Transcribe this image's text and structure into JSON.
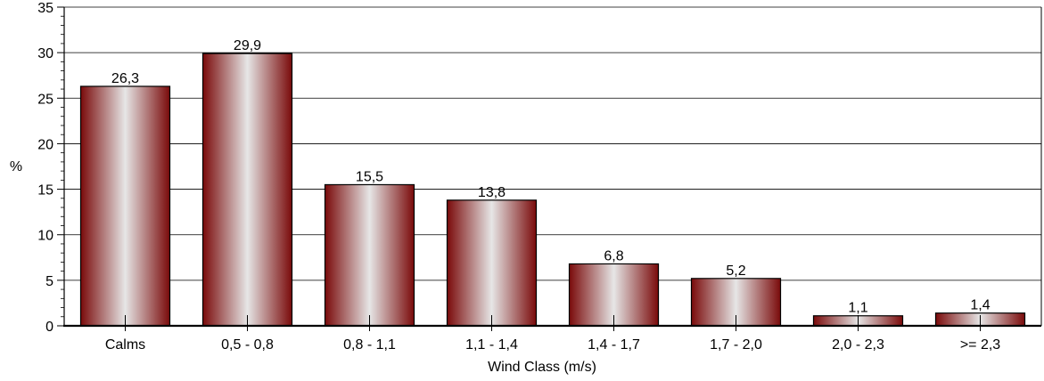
{
  "chart_data": {
    "type": "bar",
    "title": "",
    "xlabel": "Wind Class (m/s)",
    "ylabel": "%",
    "ylim": [
      0,
      35
    ],
    "yticks": [
      0,
      5,
      10,
      15,
      20,
      25,
      30,
      35
    ],
    "grid": true,
    "categories": [
      "Calms",
      "0,5 -  0,8",
      "0,8 -  1,1",
      "1,1 -  1,4",
      "1,4 -  1,7",
      "1,7 -  2,0",
      "2,0 -  2,3",
      ">=  2,3"
    ],
    "values": [
      26.3,
      29.9,
      15.5,
      13.8,
      6.8,
      5.2,
      1.1,
      1.4
    ],
    "value_labels": [
      "26,3",
      "29,9",
      "15,5",
      "13,8",
      "6,8",
      "5,2",
      "1,1",
      "1,4"
    ],
    "bar_colors": {
      "edge": "#7a0a0a",
      "center": "#e6e6e6",
      "outline": "#000000"
    }
  }
}
